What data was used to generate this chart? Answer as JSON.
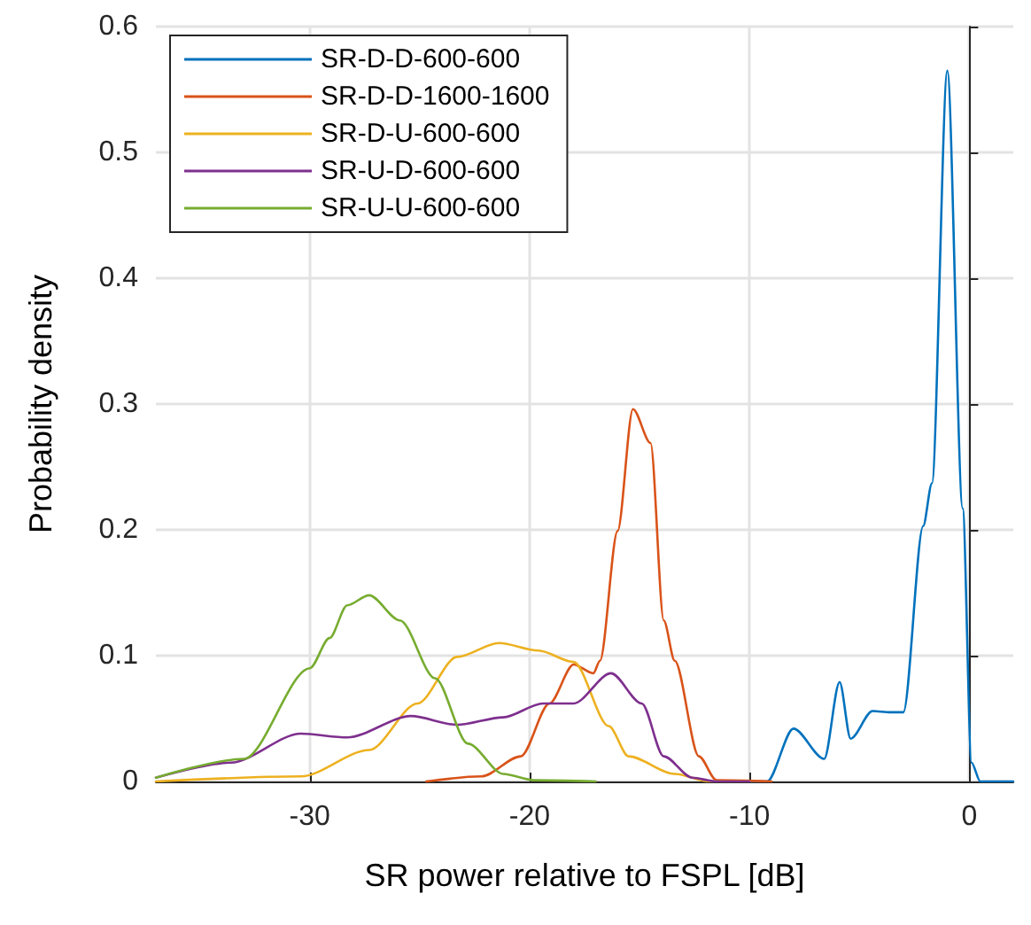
{
  "chart_data": {
    "type": "line",
    "xlabel": "SR power relative to FSPL [dB]",
    "ylabel": "Probability density",
    "xlim": [
      -37,
      2
    ],
    "xticks": [
      -30,
      -20,
      -10,
      0
    ],
    "ylim": [
      0,
      0.6
    ],
    "yticks": [
      0,
      0.1,
      0.2,
      0.3,
      0.4,
      0.5,
      0.6
    ],
    "grid": true,
    "legend": "top left",
    "marker": "none",
    "line_style": "solid",
    "series": [
      {
        "name": "SR-D-D-600-600",
        "color": "#0072bd",
        "x": [
          -10,
          -9.2,
          -8,
          -6.6,
          -5.9,
          -5.4,
          -4.4,
          -3.6,
          -3,
          -2.1,
          -1.7,
          -1,
          -0.3,
          0.1,
          0.5,
          2
        ],
        "values": [
          0,
          0,
          0.042,
          0.018,
          0.079,
          0.034,
          0.056,
          0.055,
          0.055,
          0.203,
          0.237,
          0.565,
          0.217,
          0.015,
          0,
          0
        ]
      },
      {
        "name": "SR-D-D-1600-1600",
        "color": "#d95319",
        "x": [
          -24.7,
          -22.2,
          -20.4,
          -19.1,
          -18,
          -17.1,
          -16.8,
          -16,
          -15.3,
          -14.5,
          -13.9,
          -13.4,
          -12.3,
          -11.5,
          -9
        ],
        "values": [
          0,
          0.004,
          0.02,
          0.062,
          0.093,
          0.086,
          0.096,
          0.199,
          0.296,
          0.269,
          0.128,
          0.096,
          0.02,
          0.001,
          0
        ]
      },
      {
        "name": "SR-D-U-600-600",
        "color": "#edb120",
        "x": [
          -37,
          -30.4,
          -27.3,
          -25.1,
          -23.3,
          -21.4,
          -19.6,
          -18,
          -16.4,
          -15.5,
          -13.4,
          -11.8,
          -10
        ],
        "values": [
          0,
          0.004,
          0.025,
          0.062,
          0.099,
          0.11,
          0.104,
          0.095,
          0.044,
          0.02,
          0.006,
          0,
          0
        ]
      },
      {
        "name": "SR-U-D-600-600",
        "color": "#7e2f8e",
        "x": [
          -37,
          -33.6,
          -30.4,
          -28.3,
          -25.4,
          -23.3,
          -21.2,
          -19.4,
          -18,
          -16.3,
          -14.9,
          -13.9,
          -12.6,
          -11.5,
          -10
        ],
        "values": [
          0.003,
          0.015,
          0.038,
          0.035,
          0.052,
          0.045,
          0.051,
          0.062,
          0.062,
          0.086,
          0.062,
          0.02,
          0.003,
          0,
          0
        ]
      },
      {
        "name": "SR-U-U-600-600",
        "color": "#77ac30",
        "x": [
          -37,
          -33,
          -30,
          -29.1,
          -28.3,
          -27.3,
          -25.9,
          -24.3,
          -22.8,
          -21.2,
          -19.8,
          -17
        ],
        "values": [
          0.003,
          0.018,
          0.09,
          0.114,
          0.14,
          0.148,
          0.128,
          0.082,
          0.03,
          0.006,
          0.001,
          0
        ]
      }
    ]
  }
}
